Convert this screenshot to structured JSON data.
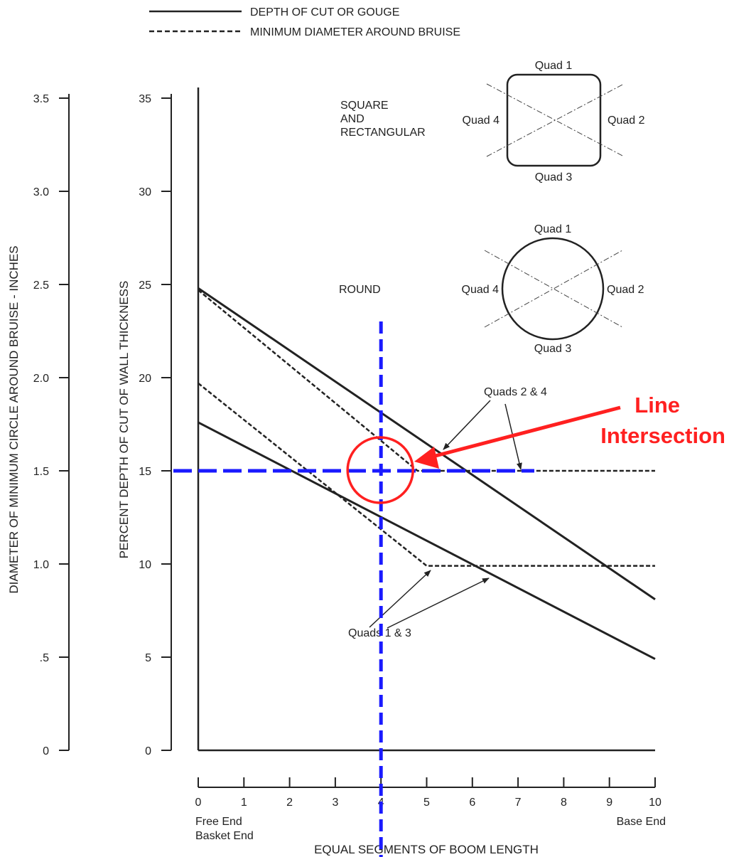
{
  "chart_data": {
    "type": "line",
    "x_axis": {
      "label": "EQUAL SEGMENTS OF BOOM LENGTH",
      "ticks": [
        "0",
        "1",
        "2",
        "3",
        "4",
        "5",
        "6",
        "7",
        "8",
        "9",
        "10"
      ],
      "range": [
        0,
        10
      ],
      "end_labels": {
        "left_line1": "Free End",
        "left_line2": "Basket End",
        "right": "Base End"
      }
    },
    "y_axis": {
      "label": "PERCENT DEPTH OF CUT OF WALL THICKNESS",
      "ticks": [
        "0",
        "5",
        "10",
        "15",
        "20",
        "25",
        "30",
        "35"
      ],
      "range": [
        0,
        35
      ]
    },
    "y2_axis": {
      "label": "DIAMETER OF MINIMUM CIRCLE AROUND BRUISE - INCHES",
      "ticks": [
        "0",
        ".5",
        "1.0",
        "1.5",
        "2.0",
        "2.5",
        "3.0",
        "3.5"
      ],
      "range": [
        0,
        3.5
      ]
    },
    "legend": [
      {
        "label": "DEPTH OF CUT OR GOUGE",
        "style": "solid"
      },
      {
        "label": "MINIMUM DIAMETER AROUND BRUISE",
        "style": "dashed"
      }
    ],
    "series": [
      {
        "style": "solid",
        "x": [
          0,
          10
        ],
        "y": [
          24.8,
          8.1
        ]
      },
      {
        "style": "solid",
        "x": [
          0,
          10
        ],
        "y": [
          17.6,
          4.9
        ]
      },
      {
        "style": "dashed",
        "x": [
          0,
          4.8,
          10
        ],
        "y": [
          24.7,
          15.0,
          15.0
        ]
      },
      {
        "style": "dashed",
        "x": [
          0,
          5.0,
          10
        ],
        "y": [
          19.7,
          9.9,
          9.9
        ]
      }
    ],
    "annotations": {
      "quads_24": "Quads 2 & 4",
      "quads_13": "Quads 1 & 3",
      "square_label_1": "SQUARE",
      "square_label_2": "AND",
      "square_label_3": "RECTANGULAR",
      "round_label": "ROUND",
      "callout_1": "Line",
      "callout_2": "Intersection"
    },
    "shape_quads": {
      "q1": "Quad 1",
      "q2": "Quad 2",
      "q3": "Quad 3",
      "q4": "Quad 4"
    },
    "guides": {
      "vertical_x": 4,
      "horizontal_y": 15,
      "intersection": [
        4,
        15
      ]
    },
    "colors": {
      "ink": "#222222",
      "guide": "#1a1aff",
      "callout": "#ff2020"
    },
    "grid": false
  }
}
